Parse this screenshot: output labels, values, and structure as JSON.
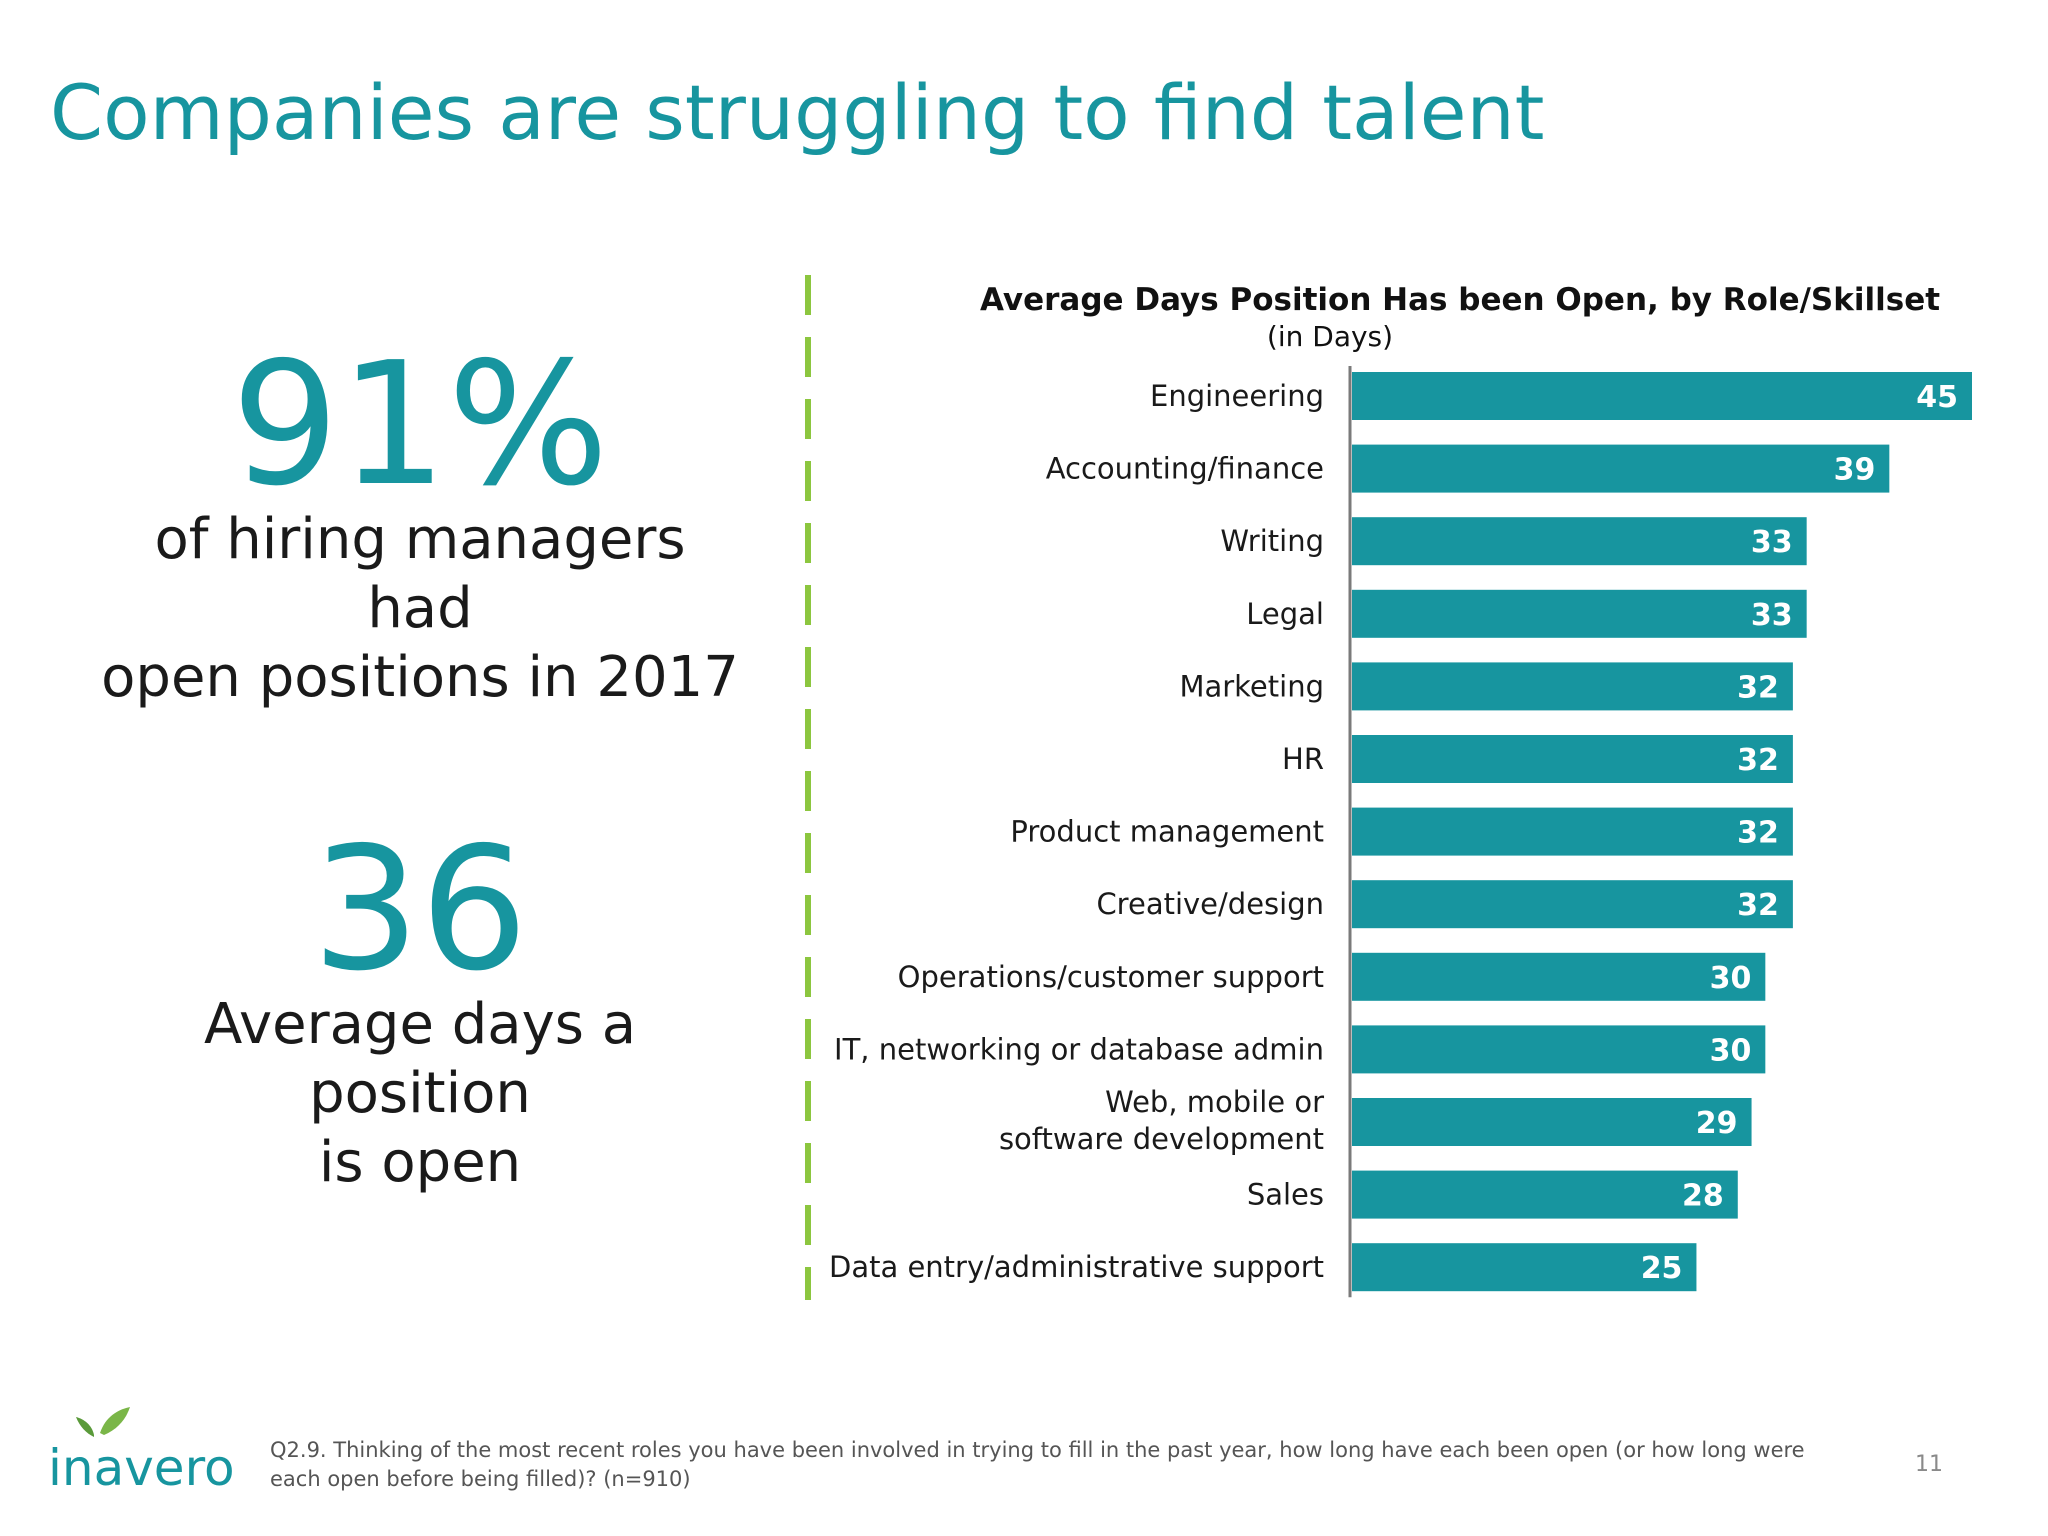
{
  "slide": {
    "title": "Companies are struggling to find talent",
    "page_number": "11"
  },
  "stats": [
    {
      "value": "91%",
      "description_line1": "of hiring managers had",
      "description_line2": "open positions in 2017"
    },
    {
      "value": "36",
      "description_line1": "Average days a position",
      "description_line2": "is open"
    }
  ],
  "footnote": "Q2.9. Thinking of the most recent roles you have been involved in trying to fill in the past year, how long have each been open (or how long were each open before being filled)? (n=910)",
  "logo": {
    "text": "inavero",
    "icon": "leaf-icon"
  },
  "colors": {
    "accent": "#17959f",
    "bar": "#17959f",
    "divider": "#8cc63f",
    "text": "#1a1a1a"
  },
  "chart_data": {
    "type": "bar",
    "orientation": "horizontal",
    "title": "Average Days Position Has been Open, by Role/Skillset",
    "subtitle": "(in Days)",
    "categories": [
      "Engineering",
      "Accounting/finance",
      "Writing",
      "Legal",
      "Marketing",
      "HR",
      "Product management",
      "Creative/design",
      "Operations/customer support",
      "IT, networking or database admin",
      "Web, mobile or software development",
      "Sales",
      "Data entry/administrative support"
    ],
    "values": [
      45,
      39,
      33,
      33,
      32,
      32,
      32,
      32,
      30,
      30,
      29,
      28,
      25
    ],
    "data_labels": true,
    "xlim": [
      0,
      45
    ],
    "grid": false
  }
}
